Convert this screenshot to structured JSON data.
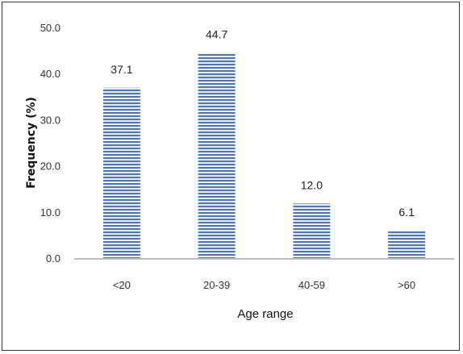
{
  "chart_data": {
    "type": "bar",
    "categories": [
      "<20",
      "20-39",
      "40-59",
      ">60"
    ],
    "values": [
      37.1,
      44.7,
      12.0,
      6.1
    ],
    "value_labels": [
      "37.1",
      "44.7",
      "12.0",
      "6.1"
    ],
    "xlabel": "Age range",
    "ylabel": "Frequency (%)",
    "ylim": [
      0,
      50
    ],
    "yticks": [
      "0.0",
      "10.0",
      "20.0",
      "30.0",
      "40.0",
      "50.0"
    ],
    "grid": false,
    "legend": "none",
    "bar_color": "#4a74c9",
    "bar_pattern": "horizontal-stripes"
  }
}
